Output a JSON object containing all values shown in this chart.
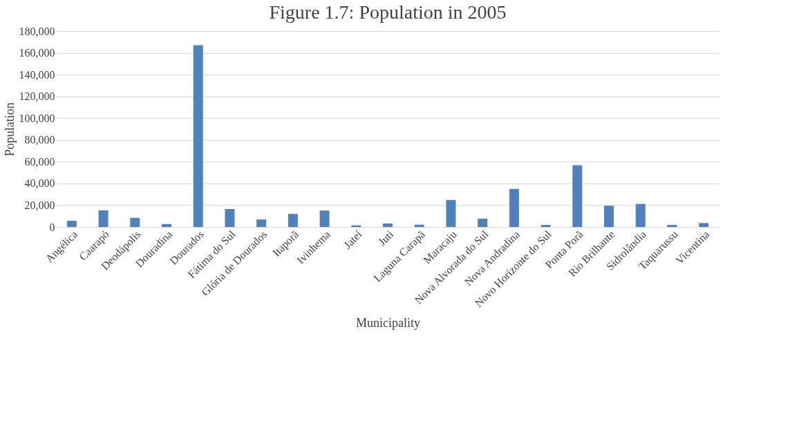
{
  "chart_data": {
    "type": "bar",
    "title": "Figure 1.7: Population in 2005",
    "xlabel": "Municipality",
    "ylabel": "Population",
    "categories": [
      "Angélica",
      "Caarapó",
      "Deodápolis",
      "Douradina",
      "Dourados",
      "Fátima do Sul",
      "Glória de Dourados",
      "Itaporã",
      "Ivinhema",
      "Jateí",
      "Juti",
      "Laguna Carapã",
      "Maracaju",
      "Nova Alvorada do Sul",
      "Nova Andradina",
      "Novo Horizonte do Sul",
      "Ponta Porã",
      "Rio Brilhante",
      "Sidrolândia",
      "Taquarussu",
      "Vicentina"
    ],
    "values": [
      5700,
      15300,
      8400,
      2700,
      167000,
      16400,
      6900,
      12000,
      15100,
      1500,
      3200,
      2100,
      24800,
      7600,
      35000,
      1900,
      56800,
      19500,
      21200,
      1900,
      3600
    ],
    "color": "#4f81bd",
    "ylim": [
      0,
      180000
    ],
    "yticks": [
      0,
      {
        "value": 20000,
        "label": "20,000"
      },
      {
        "value": 40000,
        "label": "40,000"
      },
      {
        "value": 60000,
        "label": "60,000"
      },
      {
        "value": 80000,
        "label": "80,000"
      },
      {
        "value": 100000,
        "label": "100,000"
      },
      {
        "value": 120000,
        "label": "120,000"
      },
      {
        "value": 140000,
        "label": "140,000"
      },
      {
        "value": 160000,
        "label": "160,000"
      },
      {
        "value": 180000,
        "label": "180,000"
      }
    ],
    "grid": "y"
  }
}
